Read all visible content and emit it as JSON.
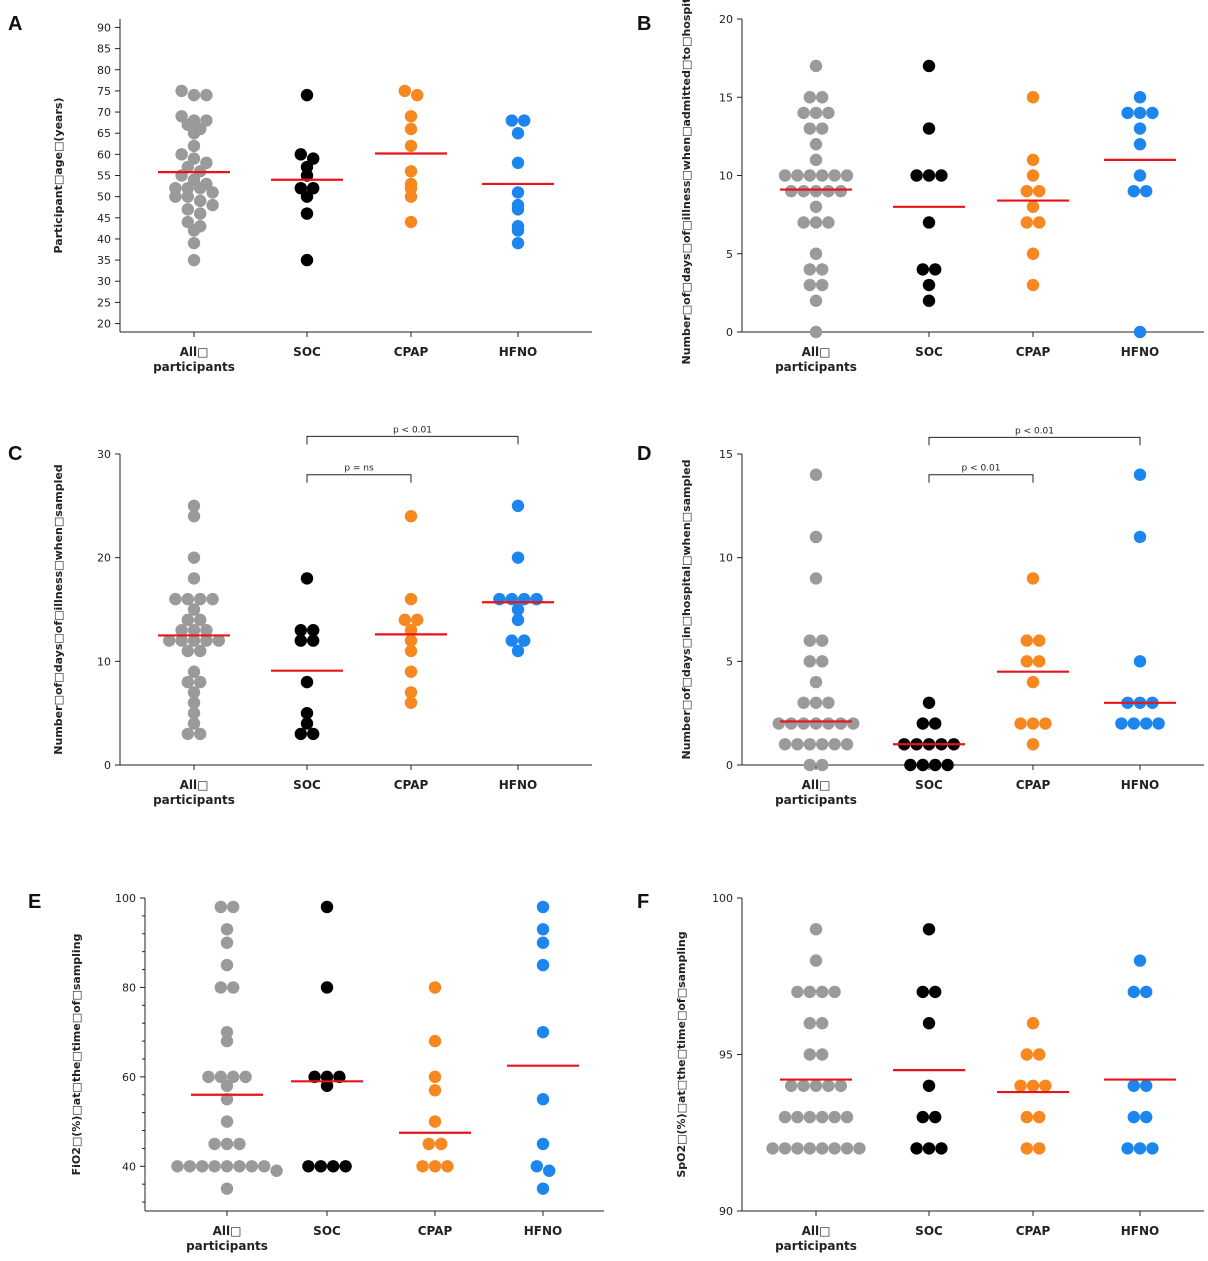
{
  "colors": {
    "All participants": "#9a9a9a",
    "SOC": "#000000",
    "CPAP": "#f7871f",
    "HFNO": "#1c86ee",
    "mean": "#e8141b",
    "axis": "#222222"
  },
  "chart_data": [
    {
      "type": "scatter",
      "panel": "A",
      "title": "",
      "xlabel": "",
      "ylabel": "Participant□age□(years)",
      "ylim": [
        18,
        92
      ],
      "yticks": [
        20,
        25,
        30,
        35,
        40,
        45,
        50,
        55,
        60,
        65,
        70,
        75,
        80,
        85,
        90
      ],
      "categories": [
        "All□ participants",
        "SOC",
        "CPAP",
        "HFNO"
      ],
      "series": [
        {
          "category": "All□ participants",
          "values": [
            75,
            74,
            74,
            69,
            68,
            68,
            67,
            66,
            65,
            62,
            60,
            59,
            58,
            57,
            56,
            55,
            54,
            53,
            52,
            52,
            52,
            51,
            50,
            50,
            49,
            48,
            47,
            46,
            44,
            43,
            42,
            39,
            35
          ],
          "mean": 55.8
        },
        {
          "category": "SOC",
          "values": [
            74,
            60,
            59,
            57,
            55,
            52,
            52,
            50,
            46,
            35
          ],
          "mean": 54
        },
        {
          "category": "CPAP",
          "values": [
            75,
            74,
            69,
            66,
            62,
            56,
            53,
            52,
            50,
            44
          ],
          "mean": 60.2
        },
        {
          "category": "HFNO",
          "values": [
            68,
            68,
            65,
            58,
            51,
            48,
            47,
            43,
            42,
            39
          ],
          "mean": 53
        }
      ],
      "annotations": []
    },
    {
      "type": "scatter",
      "panel": "B",
      "title": "",
      "xlabel": "",
      "ylabel": "Number□of□days□of□illness□when□admitted□to□hospital",
      "ylim": [
        0,
        20
      ],
      "yticks": [
        0,
        5,
        10,
        15,
        20
      ],
      "categories": [
        "All□ participants",
        "SOC",
        "CPAP",
        "HFNO"
      ],
      "series": [
        {
          "category": "All□ participants",
          "values": [
            17,
            15,
            15,
            14,
            14,
            14,
            13,
            13,
            12,
            11,
            10,
            10,
            10,
            10,
            10,
            10,
            9,
            9,
            9,
            9,
            9,
            8,
            7,
            7,
            7,
            5,
            4,
            4,
            3,
            3,
            2,
            0
          ],
          "mean": 9.1
        },
        {
          "category": "SOC",
          "values": [
            17,
            13,
            10,
            10,
            10,
            7,
            4,
            4,
            3,
            2
          ],
          "mean": 8
        },
        {
          "category": "CPAP",
          "values": [
            15,
            11,
            10,
            9,
            9,
            8,
            7,
            7,
            5,
            3
          ],
          "mean": 8.4
        },
        {
          "category": "HFNO",
          "values": [
            15,
            14,
            14,
            14,
            13,
            12,
            10,
            9,
            9,
            0
          ],
          "mean": 11
        }
      ],
      "annotations": []
    },
    {
      "type": "scatter",
      "panel": "C",
      "title": "",
      "xlabel": "",
      "ylabel": "Number□of□days□of□illness□when□sampled",
      "ylim": [
        0,
        30
      ],
      "yticks": [
        0,
        10,
        20,
        30
      ],
      "categories": [
        "All□ participants",
        "SOC",
        "CPAP",
        "HFNO"
      ],
      "series": [
        {
          "category": "All□ participants",
          "values": [
            25,
            24,
            20,
            18,
            16,
            16,
            16,
            16,
            15,
            14,
            14,
            13,
            13,
            13,
            12,
            12,
            12,
            12,
            12,
            11,
            11,
            9,
            8,
            8,
            7,
            6,
            5,
            4,
            3,
            3
          ],
          "mean": 12.5
        },
        {
          "category": "SOC",
          "values": [
            18,
            13,
            13,
            12,
            12,
            8,
            5,
            4,
            3,
            3
          ],
          "mean": 9.1
        },
        {
          "category": "CPAP",
          "values": [
            24,
            16,
            14,
            14,
            13,
            12,
            11,
            9,
            7,
            6
          ],
          "mean": 12.6
        },
        {
          "category": "HFNO",
          "values": [
            25,
            20,
            16,
            16,
            16,
            16,
            15,
            14,
            12,
            12,
            11
          ],
          "mean": 15.7
        }
      ],
      "annotations": [
        {
          "from": "SOC",
          "to": "CPAP",
          "label": "p = ns",
          "level": 28
        },
        {
          "from": "SOC",
          "to": "HFNO",
          "label": "p < 0.01",
          "level": 31.7
        }
      ]
    },
    {
      "type": "scatter",
      "panel": "D",
      "title": "",
      "xlabel": "",
      "ylabel": "Number□of□days□in□hospital□when□sampled",
      "ylim": [
        0,
        15
      ],
      "yticks": [
        0,
        5,
        10,
        15
      ],
      "categories": [
        "All□ participants",
        "SOC",
        "CPAP",
        "HFNO"
      ],
      "series": [
        {
          "category": "All□ participants",
          "values": [
            14,
            11,
            9,
            6,
            6,
            5,
            5,
            4,
            3,
            3,
            3,
            2,
            2,
            2,
            2,
            2,
            2,
            2,
            1,
            1,
            1,
            1,
            1,
            1,
            0,
            0
          ],
          "mean": 2.1
        },
        {
          "category": "SOC",
          "values": [
            3,
            2,
            2,
            1,
            1,
            1,
            1,
            1,
            0,
            0,
            0,
            0
          ],
          "mean": 1
        },
        {
          "category": "CPAP",
          "values": [
            9,
            6,
            6,
            5,
            5,
            4,
            2,
            2,
            2,
            1
          ],
          "mean": 4.5
        },
        {
          "category": "HFNO",
          "values": [
            14,
            11,
            5,
            3,
            3,
            3,
            2,
            2,
            2,
            2
          ],
          "mean": 3
        }
      ],
      "annotations": [
        {
          "from": "SOC",
          "to": "CPAP",
          "label": "p < 0.01",
          "level": 14
        },
        {
          "from": "SOC",
          "to": "HFNO",
          "label": "p < 0.01",
          "level": 15.8
        }
      ]
    },
    {
      "type": "scatter",
      "panel": "E",
      "title": "",
      "xlabel": "",
      "ylabel": "FiO2□(%)□at□the□time□of□sampling",
      "ylim": [
        30,
        100
      ],
      "yticks": [
        40,
        60,
        80,
        100
      ],
      "categories": [
        "All□ participants",
        "SOC",
        "CPAP",
        "HFNO"
      ],
      "series": [
        {
          "category": "All□ participants",
          "values": [
            98,
            98,
            93,
            90,
            85,
            80,
            80,
            70,
            68,
            60,
            60,
            60,
            60,
            58,
            55,
            50,
            45,
            45,
            45,
            40,
            40,
            40,
            40,
            40,
            40,
            40,
            40,
            39,
            35
          ],
          "mean": 56
        },
        {
          "category": "SOC",
          "values": [
            98,
            80,
            60,
            60,
            60,
            58,
            40,
            40,
            40,
            40
          ],
          "mean": 59
        },
        {
          "category": "CPAP",
          "values": [
            80,
            68,
            60,
            57,
            50,
            45,
            45,
            40,
            40,
            40
          ],
          "mean": 47.5
        },
        {
          "category": "HFNO",
          "values": [
            98,
            93,
            90,
            85,
            70,
            55,
            45,
            40,
            39,
            35
          ],
          "mean": 62.5
        }
      ],
      "annotations": []
    },
    {
      "type": "scatter",
      "panel": "F",
      "title": "",
      "xlabel": "",
      "ylabel": "SpO2□(%)□at□the□time□of□sampling",
      "ylim": [
        90,
        100
      ],
      "yticks": [
        90,
        95,
        100
      ],
      "categories": [
        "All□ participants",
        "SOC",
        "CPAP",
        "HFNO"
      ],
      "series": [
        {
          "category": "All□ participants",
          "values": [
            99,
            98,
            97,
            97,
            97,
            97,
            96,
            96,
            95,
            95,
            94,
            94,
            94,
            94,
            94,
            93,
            93,
            93,
            93,
            93,
            93,
            92,
            92,
            92,
            92,
            92,
            92,
            92,
            92
          ],
          "mean": 94.2
        },
        {
          "category": "SOC",
          "values": [
            99,
            97,
            97,
            96,
            94,
            93,
            93,
            92,
            92,
            92
          ],
          "mean": 94.5
        },
        {
          "category": "CPAP",
          "values": [
            96,
            95,
            95,
            94,
            94,
            94,
            93,
            93,
            92,
            92
          ],
          "mean": 93.8
        },
        {
          "category": "HFNO",
          "values": [
            98,
            97,
            97,
            94,
            94,
            93,
            93,
            92,
            92,
            92
          ],
          "mean": 94.2
        }
      ],
      "annotations": []
    }
  ]
}
